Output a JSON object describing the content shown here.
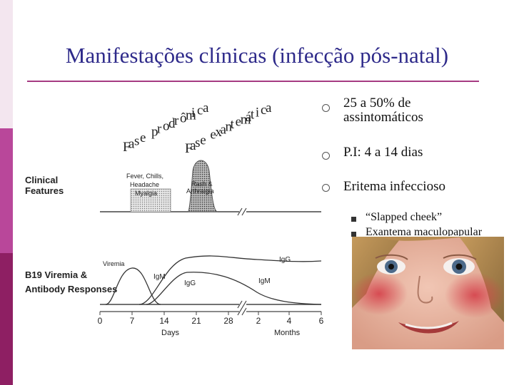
{
  "slide": {
    "title": "Manifestações clínicas (infecção pós-natal)"
  },
  "figure": {
    "phase_labels": {
      "prodromic": "Fase prodrômica",
      "exanthematic": "Fase exantemática"
    },
    "row_labels": {
      "clinical_line1": "Clinical",
      "clinical_line2": "Features",
      "viremia_line1": "B19 Viremia &",
      "viremia_line2": "Antibody Responses"
    },
    "peak_labels": {
      "fever_1": "Fever, Chills,",
      "fever_2": "Headache",
      "fever_3": "Myalgia",
      "rash_1": "Rash &",
      "rash_2": "Arthralgia"
    },
    "curve_labels": {
      "viremia": "Viremia",
      "igm_1": "IgM",
      "igg_1": "IgG",
      "igg_2": "IgG",
      "igm_2": "IgM"
    },
    "x_ticks": [
      "0",
      "7",
      "14",
      "21",
      "28",
      "2",
      "4",
      "6"
    ],
    "x_axis_days": "Days",
    "x_axis_months": "Months"
  },
  "bullets": [
    {
      "text_line1": "25 a 50% de",
      "text_line2": "assintomáticos"
    },
    {
      "text_line1": "P.I: 4 a 14 dias"
    },
    {
      "text_line1": "Eritema infeccioso"
    }
  ],
  "sub_bullets": [
    "“Slapped cheek”",
    "Exantema maculopapular"
  ],
  "colors": {
    "title": "#2e2a8a",
    "rule": "#a63a82",
    "sidebar_top": "#f3e6ef",
    "sidebar_mid": "#b9479a",
    "sidebar_bottom": "#8e1f63"
  },
  "photo": {
    "subject": "child-face-with-red-cheeks"
  }
}
